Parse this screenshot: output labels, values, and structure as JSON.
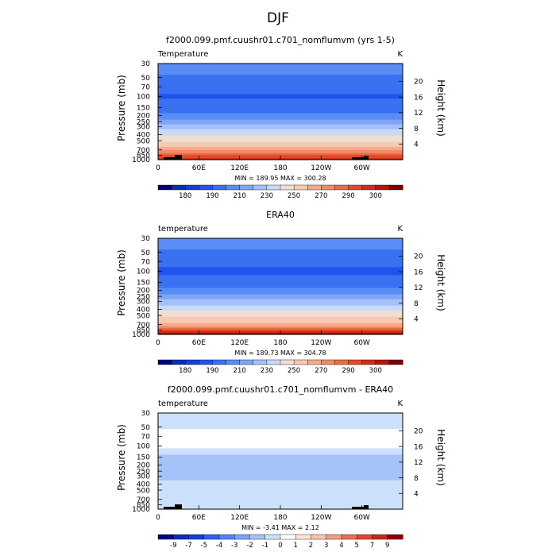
{
  "figure": {
    "title": "DJF"
  },
  "colors": {
    "abs_levels": [
      "#000080",
      "#0a2fb0",
      "#1040d8",
      "#1f55ee",
      "#3a70f2",
      "#5a8cf5",
      "#7ea6f7",
      "#a3c0fa",
      "#c9daf8",
      "#f1ded3",
      "#f7c8b2",
      "#f5aa8c",
      "#f28a65",
      "#ec6a44",
      "#e24a28",
      "#d22a14",
      "#b81508",
      "#7a0000"
    ],
    "diff_levels": [
      "#000080",
      "#0a2fb0",
      "#1040d8",
      "#2b62ee",
      "#4f84f3",
      "#7aa4f6",
      "#a5c3f8",
      "#cde0fb",
      "#ffffff",
      "#fbe3d6",
      "#f7c3ab",
      "#f29d7e",
      "#e9704f",
      "#dc4a2a",
      "#c62a12",
      "#8a0000"
    ],
    "topography": "#000000"
  },
  "chart_data": [
    {
      "type": "heatmap",
      "title": "f2000.099.pmf.cuushr01.c701_nomflumvm (yrs 1-5)",
      "left_label": "Temperature",
      "right_label": "K",
      "ylabel": "Pressure (mb)",
      "ylabel_right": "Height (km)",
      "x_ticks": [
        "0",
        "60E",
        "120E",
        "180",
        "120W",
        "60W"
      ],
      "y_ticks": [
        "30",
        "50",
        "70",
        "100",
        "150",
        "200",
        "250",
        "300",
        "400",
        "500",
        "700",
        "850",
        "1000"
      ],
      "y_ticks_right": [
        "20",
        "16",
        "12",
        "8",
        "4"
      ],
      "stats": "MIN =  189.95   MAX = 300.28",
      "colorbar_labels": [
        "180",
        "190",
        "210",
        "230",
        "250",
        "270",
        "290",
        "300"
      ],
      "profile": [
        {
          "p": 30,
          "v": 217
        },
        {
          "p": 50,
          "v": 208
        },
        {
          "p": 70,
          "v": 203
        },
        {
          "p": 100,
          "v": 199
        },
        {
          "p": 150,
          "v": 203
        },
        {
          "p": 200,
          "v": 212
        },
        {
          "p": 250,
          "v": 224
        },
        {
          "p": 300,
          "v": 234
        },
        {
          "p": 400,
          "v": 249
        },
        {
          "p": 500,
          "v": 259
        },
        {
          "p": 700,
          "v": 274
        },
        {
          "p": 850,
          "v": 284
        },
        {
          "p": 1000,
          "v": 297
        }
      ]
    },
    {
      "type": "heatmap",
      "title": "ERA40",
      "left_label": "temperature",
      "right_label": "K",
      "ylabel": "Pressure (mb)",
      "ylabel_right": "Height (km)",
      "x_ticks": [
        "0",
        "60E",
        "120E",
        "180",
        "120W",
        "60W"
      ],
      "y_ticks": [
        "30",
        "50",
        "70",
        "100",
        "150",
        "200",
        "250",
        "300",
        "400",
        "500",
        "700",
        "850",
        "1000"
      ],
      "y_ticks_right": [
        "20",
        "16",
        "12",
        "8",
        "4"
      ],
      "stats": "MIN =  189.73   MAX = 304.78",
      "colorbar_labels": [
        "180",
        "190",
        "210",
        "230",
        "250",
        "270",
        "290",
        "300"
      ],
      "profile": [
        {
          "p": 30,
          "v": 216
        },
        {
          "p": 50,
          "v": 208
        },
        {
          "p": 70,
          "v": 203
        },
        {
          "p": 100,
          "v": 198
        },
        {
          "p": 150,
          "v": 203
        },
        {
          "p": 200,
          "v": 212
        },
        {
          "p": 250,
          "v": 223
        },
        {
          "p": 300,
          "v": 233
        },
        {
          "p": 400,
          "v": 248
        },
        {
          "p": 500,
          "v": 258
        },
        {
          "p": 700,
          "v": 273
        },
        {
          "p": 850,
          "v": 284
        },
        {
          "p": 1000,
          "v": 298
        }
      ]
    },
    {
      "type": "heatmap",
      "title": "f2000.099.pmf.cuushr01.c701_nomflumvm - ERA40",
      "left_label": "temperature",
      "right_label": "K",
      "ylabel": "Pressure (mb)",
      "ylabel_right": "Height (km)",
      "x_ticks": [
        "0",
        "60E",
        "120E",
        "180",
        "120W",
        "60W"
      ],
      "y_ticks": [
        "30",
        "50",
        "70",
        "100",
        "150",
        "200",
        "250",
        "300",
        "400",
        "500",
        "700",
        "850",
        "1000"
      ],
      "y_ticks_right": [
        "20",
        "16",
        "12",
        "8",
        "4"
      ],
      "stats": "MIN =   -3.41   MAX =    2.12",
      "colorbar_labels": [
        "-9",
        "-7",
        "-5",
        "-4",
        "-3",
        "-2",
        "-1",
        "0",
        "1",
        "2",
        "3",
        "4",
        "5",
        "7",
        "9"
      ],
      "profile": [
        {
          "p": 30,
          "v": -0.5
        },
        {
          "p": 50,
          "v": -0.3
        },
        {
          "p": 70,
          "v": 0.8
        },
        {
          "p": 100,
          "v": 0.4
        },
        {
          "p": 150,
          "v": -1.5
        },
        {
          "p": 200,
          "v": -1.6
        },
        {
          "p": 300,
          "v": -1.2
        },
        {
          "p": 400,
          "v": -0.8
        },
        {
          "p": 500,
          "v": -0.5
        },
        {
          "p": 700,
          "v": -0.4
        },
        {
          "p": 850,
          "v": -0.3
        },
        {
          "p": 1000,
          "v": -0.2
        }
      ]
    }
  ]
}
